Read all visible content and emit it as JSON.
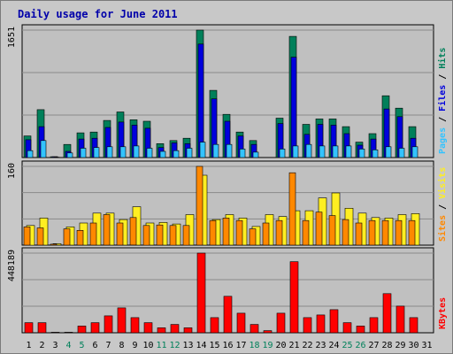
{
  "chart_data": {
    "type": "bar",
    "title": "Daily usage for June 2011",
    "categories": [
      "1",
      "2",
      "3",
      "4",
      "5",
      "6",
      "7",
      "8",
      "9",
      "10",
      "11",
      "12",
      "13",
      "14",
      "15",
      "16",
      "17",
      "18",
      "19",
      "20",
      "21",
      "22",
      "23",
      "24",
      "25",
      "26",
      "27",
      "28",
      "29",
      "30",
      "31"
    ],
    "weekend_days": [
      "4",
      "5",
      "11",
      "12",
      "18",
      "19",
      "25",
      "26"
    ],
    "panels": [
      {
        "name": "hits-files-pages",
        "ymax_label": "1651",
        "ymax": 1651,
        "right_labels": [
          {
            "text": "Pages",
            "color": "#33c3ff"
          },
          {
            "text": " / ",
            "color": "#000000"
          },
          {
            "text": "Files",
            "color": "#0000dd"
          },
          {
            "text": " / ",
            "color": "#000000"
          },
          {
            "text": "Hits",
            "color": "#00805a"
          }
        ],
        "series": [
          {
            "name": "Hits",
            "color": "#00805a",
            "values": [
              280,
              620,
              10,
              170,
              320,
              330,
              480,
              590,
              490,
              470,
              180,
              220,
              250,
              1651,
              870,
              560,
              330,
              220,
              0,
              510,
              1570,
              430,
              500,
              500,
              400,
              200,
              310,
              800,
              640,
              400,
              0
            ]
          },
          {
            "name": "Files",
            "color": "#0000dd",
            "values": [
              230,
              400,
              10,
              80,
              240,
              250,
              390,
              460,
              420,
              380,
              130,
              190,
              180,
              1470,
              760,
              470,
              280,
              170,
              0,
              440,
              1300,
              300,
              430,
              420,
              310,
              160,
              240,
              630,
              530,
              250,
              0
            ]
          },
          {
            "name": "Pages",
            "color": "#33c3ff",
            "values": [
              90,
              220,
              5,
              60,
              120,
              130,
              140,
              140,
              150,
              120,
              80,
              90,
              120,
              200,
              170,
              170,
              110,
              70,
              0,
              110,
              150,
              170,
              150,
              150,
              150,
              110,
              100,
              140,
              120,
              140,
              0
            ]
          }
        ]
      },
      {
        "name": "visits-sites",
        "ymax_label": "160",
        "ymax": 160,
        "right_labels": [
          {
            "text": "Sites",
            "color": "#ff8800"
          },
          {
            "text": " / ",
            "color": "#000000"
          },
          {
            "text": "Visits",
            "color": "#ffee22"
          }
        ],
        "series": [
          {
            "name": "Visits",
            "color": "#ffee22",
            "values": [
              40,
              55,
              3,
              37,
              45,
              65,
              65,
              52,
              78,
              45,
              46,
              43,
              62,
              142,
              52,
              62,
              55,
              38,
              62,
              58,
              70,
              70,
              96,
              106,
              75,
              65,
              56,
              55,
              62,
              64,
              0
            ]
          },
          {
            "name": "Sites",
            "color": "#ff8800",
            "values": [
              37,
              35,
              2,
              33,
              30,
              45,
              62,
              45,
              56,
              40,
              41,
              40,
              40,
              160,
              50,
              55,
              50,
              33,
              45,
              50,
              147,
              50,
              67,
              60,
              52,
              45,
              50,
              50,
              50,
              50,
              0
            ]
          }
        ]
      },
      {
        "name": "kbytes",
        "ymax_label": "448189",
        "ymax": 448189,
        "right_labels": [
          {
            "text": "KBytes",
            "color": "#ff0000"
          }
        ],
        "series": [
          {
            "name": "KBytes",
            "color": "#ff0000",
            "values": [
              57000,
              57000,
              3000,
              3000,
              38000,
              57000,
              95000,
              140000,
              85000,
              57000,
              28000,
              47000,
              28000,
              448189,
              85000,
              205000,
              110000,
              47000,
              12000,
              110000,
              400000,
              85000,
              100000,
              130000,
              57000,
              38000,
              85000,
              220000,
              150000,
              85000,
              0
            ]
          }
        ]
      }
    ]
  },
  "colors": {
    "plot_bg": "#c0c0c0",
    "frame_bg": "#c8c8c8",
    "title": "#0000aa",
    "day_label": "#000000",
    "weekend_label": "#00805a",
    "grid": "#8a8a8a"
  }
}
